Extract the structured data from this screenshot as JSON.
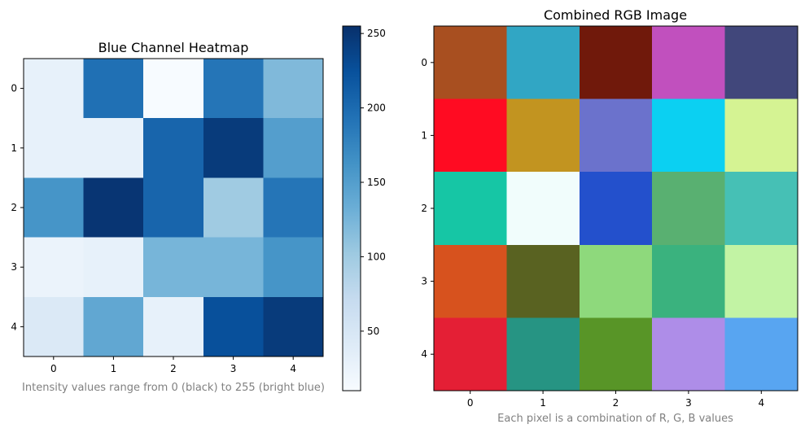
{
  "chart_data": [
    {
      "type": "heatmap",
      "title": "Blue Channel Heatmap",
      "caption": "Intensity values range from 0 (black) to 255 (bright blue)",
      "colormap": "Blues",
      "x_ticks": [
        "0",
        "1",
        "2",
        "3",
        "4"
      ],
      "y_ticks": [
        "0",
        "1",
        "2",
        "3",
        "4"
      ],
      "colorbar": {
        "min": 10,
        "max": 255,
        "ticks": [
          "50",
          "100",
          "150",
          "200",
          "250"
        ],
        "tick_values": [
          50,
          100,
          150,
          200,
          250
        ]
      },
      "values": [
        [
          30,
          195,
          10,
          190,
          120
        ],
        [
          30,
          30,
          205,
          245,
          150
        ],
        [
          160,
          250,
          205,
          100,
          190
        ],
        [
          25,
          30,
          125,
          125,
          160
        ],
        [
          45,
          140,
          30,
          225,
          245
        ]
      ]
    },
    {
      "type": "heatmap",
      "title": "Combined RGB Image",
      "caption": "Each pixel is a combination of R, G, B values",
      "x_ticks": [
        "0",
        "1",
        "2",
        "3",
        "4"
      ],
      "y_ticks": [
        "0",
        "1",
        "2",
        "3",
        "4"
      ],
      "pixels": [
        [
          "#a84f20",
          "#31a6c4",
          "#70190b",
          "#c150be",
          "#41477b"
        ],
        [
          "#ff0b22",
          "#c29420",
          "#6b72cc",
          "#0bd0f2",
          "#d5f393"
        ],
        [
          "#16c6a5",
          "#f1fdfc",
          "#2350cc",
          "#59b071",
          "#46c0b5"
        ],
        [
          "#d7521e",
          "#596221",
          "#8ed97c",
          "#3ab27e",
          "#c2f3a4"
        ],
        [
          "#e41f35",
          "#269483",
          "#589527",
          "#ae8de8",
          "#58a5f1"
        ]
      ]
    }
  ]
}
